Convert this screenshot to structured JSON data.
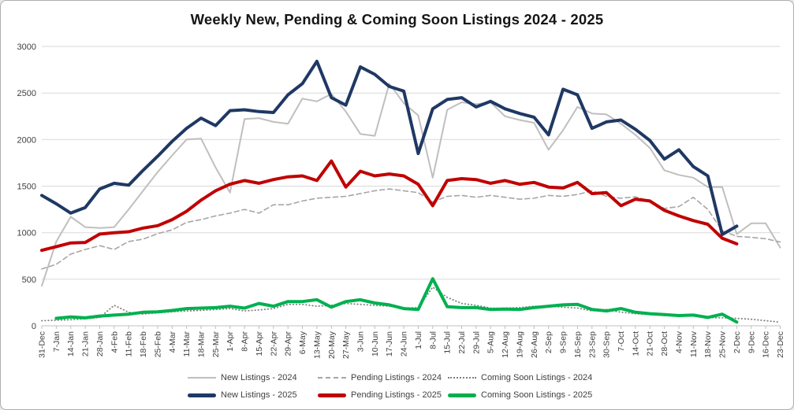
{
  "window": {
    "background": "#ffffff",
    "border_color": "#aeaeae"
  },
  "chart_data": {
    "type": "line",
    "title": "Weekly New, Pending & Coming Soon Listings 2024 - 2025",
    "xlabel": "",
    "ylabel": "",
    "ylim": [
      0,
      3000
    ],
    "yticks": [
      0,
      500,
      1000,
      1500,
      2000,
      2500,
      3000
    ],
    "grid": "horizontal",
    "legend_position": "bottom",
    "axis_color": "#bfbfbf",
    "gridline_color": "#d9d9d9",
    "categories": [
      "31-Dec",
      "7-Jan",
      "14-Jan",
      "21-Jan",
      "28-Jan",
      "4-Feb",
      "11-Feb",
      "18-Feb",
      "25-Feb",
      "4-Mar",
      "11-Mar",
      "18-Mar",
      "25-Mar",
      "1-Apr",
      "8-Apr",
      "15-Apr",
      "22-Apr",
      "29-Apr",
      "6-May",
      "13-May",
      "20-May",
      "27-May",
      "3-Jun",
      "10-Jun",
      "17-Jun",
      "24-Jun",
      "1-Jul",
      "8-Jul",
      "15-Jul",
      "22-Jul",
      "29-Jul",
      "5-Aug",
      "12-Aug",
      "19-Aug",
      "26-Aug",
      "2-Sep",
      "9-Sep",
      "16-Sep",
      "23-Sep",
      "30-Sep",
      "7-Oct",
      "14-Oct",
      "21-Oct",
      "28-Oct",
      "4-Nov",
      "11-Nov",
      "18-Nov",
      "25-Nov",
      "2-Dec",
      "9-Dec",
      "16-Dec",
      "23-Dec"
    ],
    "series": [
      {
        "name": "New Listings - 2024",
        "color": "#bfbfbf",
        "style": "solid-thin",
        "values": [
          430,
          905,
          1170,
          1060,
          1050,
          1060,
          1250,
          1450,
          1650,
          1830,
          2000,
          2010,
          1700,
          1430,
          2220,
          2230,
          2190,
          2170,
          2440,
          2410,
          2490,
          2300,
          2060,
          2040,
          2600,
          2390,
          2260,
          1590,
          2320,
          2400,
          2380,
          2400,
          2250,
          2210,
          2180,
          1890,
          2100,
          2350,
          2280,
          2270,
          2170,
          2050,
          1910,
          1670,
          1620,
          1590,
          1490,
          1490,
          985,
          1100,
          1100,
          840
        ]
      },
      {
        "name": "Pending Listings - 2024",
        "color": "#a6a6a6",
        "style": "dashed",
        "values": [
          610,
          660,
          770,
          820,
          860,
          820,
          905,
          930,
          990,
          1030,
          1110,
          1140,
          1180,
          1210,
          1250,
          1210,
          1300,
          1300,
          1340,
          1370,
          1380,
          1390,
          1420,
          1450,
          1470,
          1450,
          1430,
          1330,
          1390,
          1400,
          1380,
          1400,
          1380,
          1360,
          1370,
          1400,
          1390,
          1410,
          1450,
          1390,
          1370,
          1385,
          1340,
          1260,
          1280,
          1380,
          1250,
          1020,
          960,
          950,
          935,
          900
        ]
      },
      {
        "name": "Coming Soon Listings - 2024",
        "color": "#7f7f7f",
        "style": "dotted",
        "values": [
          55,
          60,
          65,
          75,
          90,
          220,
          145,
          125,
          140,
          150,
          160,
          165,
          175,
          185,
          160,
          170,
          185,
          230,
          230,
          210,
          220,
          240,
          230,
          220,
          210,
          190,
          195,
          415,
          305,
          240,
          220,
          190,
          190,
          195,
          210,
          210,
          200,
          190,
          160,
          175,
          145,
          130,
          120,
          110,
          115,
          105,
          90,
          85,
          80,
          70,
          55,
          40
        ]
      },
      {
        "name": "New Listings - 2025",
        "color": "#1f3864",
        "style": "solid-thick",
        "values": [
          1400,
          1310,
          1210,
          1270,
          1470,
          1530,
          1510,
          1670,
          1820,
          1980,
          2120,
          2230,
          2150,
          2310,
          2320,
          2300,
          2290,
          2480,
          2600,
          2840,
          2450,
          2370,
          2780,
          2700,
          2570,
          2520,
          1850,
          2330,
          2430,
          2450,
          2350,
          2410,
          2330,
          2280,
          2240,
          2050,
          2540,
          2480,
          2120,
          2190,
          2210,
          2110,
          1990,
          1790,
          1890,
          1710,
          1610,
          980,
          1070,
          null,
          null,
          null
        ]
      },
      {
        "name": "Pending Listings - 2025",
        "color": "#c00000",
        "style": "solid-thick",
        "values": [
          810,
          850,
          890,
          895,
          985,
          1000,
          1010,
          1050,
          1075,
          1140,
          1230,
          1350,
          1450,
          1520,
          1560,
          1530,
          1570,
          1600,
          1610,
          1560,
          1770,
          1490,
          1660,
          1610,
          1630,
          1610,
          1520,
          1290,
          1560,
          1580,
          1570,
          1530,
          1560,
          1520,
          1540,
          1490,
          1480,
          1540,
          1420,
          1430,
          1290,
          1360,
          1340,
          1240,
          1180,
          1130,
          1090,
          940,
          880,
          null,
          null,
          null
        ]
      },
      {
        "name": "Coming Soon Listings - 2025",
        "color": "#00b050",
        "style": "solid-thick",
        "values": [
          null,
          80,
          95,
          85,
          105,
          115,
          125,
          145,
          150,
          165,
          185,
          190,
          195,
          210,
          190,
          240,
          210,
          260,
          260,
          280,
          200,
          260,
          280,
          245,
          225,
          185,
          175,
          505,
          205,
          195,
          195,
          175,
          180,
          175,
          195,
          210,
          225,
          230,
          175,
          160,
          185,
          145,
          130,
          120,
          110,
          115,
          90,
          125,
          40,
          null,
          null,
          null
        ]
      }
    ],
    "legend_rows": [
      [
        0,
        1,
        2
      ],
      [
        3,
        4,
        5
      ]
    ]
  }
}
